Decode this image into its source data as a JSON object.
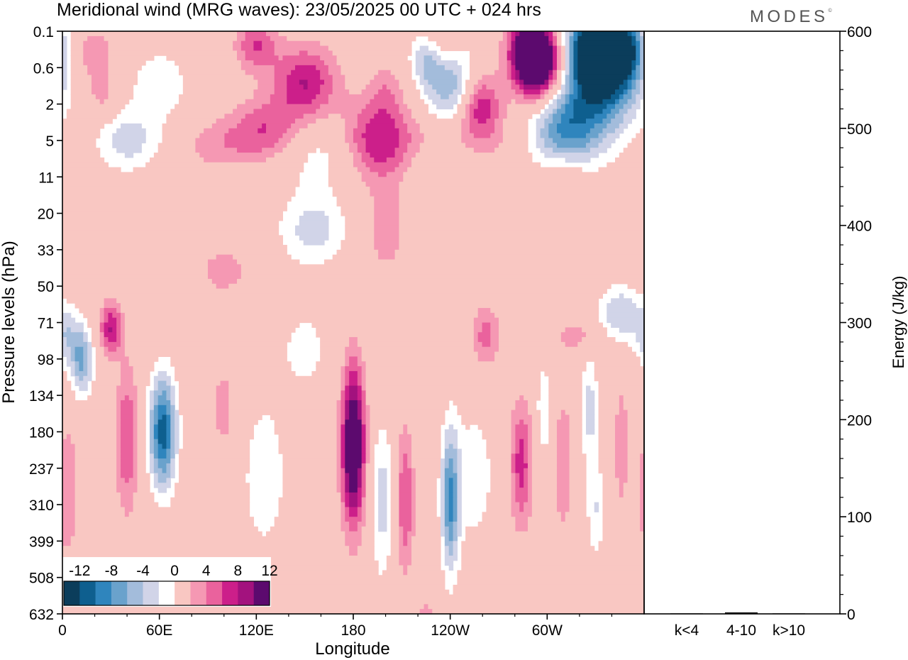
{
  "header": {
    "title": "Meridional wind (MRG waves):  23/05/2025  00 UTC  + 024 hrs",
    "logo": "MODES"
  },
  "colors": {
    "negative": [
      "#0b3d5b",
      "#0e5f8f",
      "#2f85bd",
      "#6aa2cc",
      "#a3bcdb",
      "#d1d4e8"
    ],
    "positive": [
      "#f9c7c2",
      "#f598b3",
      "#ea629d",
      "#cc1f8a",
      "#a3127e",
      "#5c0a6e"
    ],
    "zero_band": "#ffffff"
  },
  "chart_data": [
    {
      "type": "heatmap",
      "title": "Meridional wind (MRG waves):  23/05/2025  00 UTC  + 024 hrs",
      "xlabel": "Longitude",
      "ylabel": "Pressure levels (hPa)",
      "x_ticks": [
        "0",
        "60E",
        "120E",
        "180",
        "120W",
        "60W"
      ],
      "y_ticks": [
        "0.1",
        "0.6",
        "2",
        "5",
        "11",
        "20",
        "33",
        "50",
        "71",
        "98",
        "134",
        "180",
        "237",
        "310",
        "399",
        "508",
        "632"
      ],
      "colorbar": {
        "tick_labels": [
          "-12",
          "-8",
          "-4",
          "0",
          "4",
          "8",
          "12"
        ],
        "levels": [
          -14,
          -12,
          -10,
          -8,
          -6,
          -4,
          -2,
          2,
          4,
          6,
          8,
          10,
          12,
          14
        ]
      },
      "features": [
        {
          "lon": 335,
          "level": 0.6,
          "value": -15,
          "sx": 16,
          "sy": 0.9
        },
        {
          "lon": 330,
          "level": 0.2,
          "value": -12,
          "sx": 12,
          "sy": 0.6
        },
        {
          "lon": 348,
          "level": 0.2,
          "value": -8,
          "sx": 7,
          "sy": 0.6
        },
        {
          "lon": 295,
          "level": 0.6,
          "value": 14,
          "sx": 11,
          "sy": 0.7
        },
        {
          "lon": 290,
          "level": 0.2,
          "value": 11,
          "sx": 9,
          "sy": 0.6
        },
        {
          "lon": 240,
          "level": 1.1,
          "value": -8,
          "sx": 12,
          "sy": 0.8
        },
        {
          "lon": 225,
          "level": 0.4,
          "value": -5,
          "sx": 7,
          "sy": 0.5
        },
        {
          "lon": 258,
          "level": 2,
          "value": 8,
          "sx": 9,
          "sy": 0.6
        },
        {
          "lon": 235,
          "level": 0.2,
          "value": 3,
          "sx": 8,
          "sy": 0.5
        },
        {
          "lon": 150,
          "level": 1,
          "value": 8,
          "sx": 14,
          "sy": 0.7
        },
        {
          "lon": 120,
          "level": 0.2,
          "value": 6,
          "sx": 9,
          "sy": 0.5
        },
        {
          "lon": 195,
          "level": 5,
          "value": 8,
          "sx": 15,
          "sy": 0.75
        },
        {
          "lon": 200,
          "level": 1.3,
          "value": 3,
          "sx": 8,
          "sy": 0.5
        },
        {
          "lon": 250,
          "level": 5,
          "value": 3,
          "sx": 25,
          "sy": 0.6
        },
        {
          "lon": 125,
          "level": 4,
          "value": 6,
          "sx": 15,
          "sy": 0.6
        },
        {
          "lon": 95,
          "level": 5.5,
          "value": 3,
          "sx": 14,
          "sy": 0.5
        },
        {
          "lon": 310,
          "level": 4,
          "value": -8,
          "sx": 16,
          "sy": 0.8
        },
        {
          "lon": 325,
          "level": 2.5,
          "value": -4,
          "sx": 20,
          "sy": 0.9
        },
        {
          "lon": 160,
          "level": 7,
          "value": -3,
          "sx": 20,
          "sy": 0.7
        },
        {
          "lon": 40,
          "level": 5,
          "value": -5,
          "sx": 14,
          "sy": 0.6
        },
        {
          "lon": 60,
          "level": 1,
          "value": -3,
          "sx": 16,
          "sy": 0.8
        },
        {
          "lon": 20,
          "level": 0.3,
          "value": 4,
          "sx": 8,
          "sy": 0.5
        },
        {
          "lon": 25,
          "level": 1.5,
          "value": 3,
          "sx": 8,
          "sy": 0.5
        },
        {
          "lon": 240,
          "level": 9,
          "value": -3,
          "sx": 16,
          "sy": 0.5
        },
        {
          "lon": 310,
          "level": 10,
          "value": 3,
          "sx": 10,
          "sy": 0.4
        },
        {
          "lon": 155,
          "level": 25,
          "value": -5,
          "sx": 15,
          "sy": 0.7
        },
        {
          "lon": 200,
          "level": 25,
          "value": 3,
          "sx": 10,
          "sy": 1
        },
        {
          "lon": 100,
          "level": 42,
          "value": 3,
          "sx": 12,
          "sy": 0.5
        },
        {
          "lon": 345,
          "level": 65,
          "value": -6,
          "sx": 9,
          "sy": 0.55
        },
        {
          "lon": 12,
          "level": 100,
          "value": -8,
          "sx": 5,
          "sy": 0.7
        },
        {
          "lon": 30,
          "level": 75,
          "value": 8,
          "sx": 5,
          "sy": 0.5
        },
        {
          "lon": 62,
          "level": 180,
          "value": -13,
          "sx": 6,
          "sy": 1.1
        },
        {
          "lon": 40,
          "level": 190,
          "value": 6,
          "sx": 5,
          "sy": 1.4
        },
        {
          "lon": 180,
          "level": 200,
          "value": 15,
          "sx": 5,
          "sy": 1.5
        },
        {
          "lon": 198,
          "level": 300,
          "value": -5,
          "sx": 5,
          "sy": 1.5
        },
        {
          "lon": 212,
          "level": 300,
          "value": 6,
          "sx": 4,
          "sy": 1.4
        },
        {
          "lon": 240,
          "level": 300,
          "value": -10,
          "sx": 4,
          "sy": 1.4
        },
        {
          "lon": 284,
          "level": 230,
          "value": 7,
          "sx": 5,
          "sy": 1.2
        },
        {
          "lon": 298,
          "level": 150,
          "value": -4,
          "sx": 3.5,
          "sy": 0.9
        },
        {
          "lon": 310,
          "level": 230,
          "value": 4,
          "sx": 4,
          "sy": 1.3
        },
        {
          "lon": 326,
          "level": 150,
          "value": -5,
          "sx": 4,
          "sy": 1
        },
        {
          "lon": 330,
          "level": 320,
          "value": -4,
          "sx": 4,
          "sy": 1
        },
        {
          "lon": 346,
          "level": 200,
          "value": 3,
          "sx": 4,
          "sy": 1.5
        },
        {
          "lon": 262,
          "level": 80,
          "value": 5,
          "sx": 6,
          "sy": 0.6
        },
        {
          "lon": 125,
          "level": 250,
          "value": -3,
          "sx": 12,
          "sy": 1.8
        },
        {
          "lon": 100,
          "level": 150,
          "value": 3,
          "sx": 6,
          "sy": 1
        },
        {
          "lon": 255,
          "level": 250,
          "value": -3,
          "sx": 10,
          "sy": 1.5
        },
        {
          "lon": 3,
          "level": 280,
          "value": 4,
          "sx": 5,
          "sy": 1.3
        },
        {
          "lon": 362,
          "level": 80,
          "value": -5,
          "sx": 6,
          "sy": 0.6
        },
        {
          "lon": 318,
          "level": 80,
          "value": 3,
          "sx": 10,
          "sy": 0.3
        },
        {
          "lon": 225,
          "level": 800,
          "value": 5,
          "sx": 4,
          "sy": 1
        },
        {
          "lon": 150,
          "level": 90,
          "value": -3,
          "sx": 10,
          "sy": 0.8
        }
      ]
    },
    {
      "type": "bar",
      "categories": [
        "k<4",
        "4-10",
        "k>10"
      ],
      "values": [
        0.5,
        1.5,
        0.5
      ],
      "ylabel": "Energy (J/kg)",
      "ylim": [
        0,
        600
      ],
      "y_ticks": [
        "0",
        "100",
        "200",
        "300",
        "400",
        "500",
        "600"
      ]
    }
  ]
}
